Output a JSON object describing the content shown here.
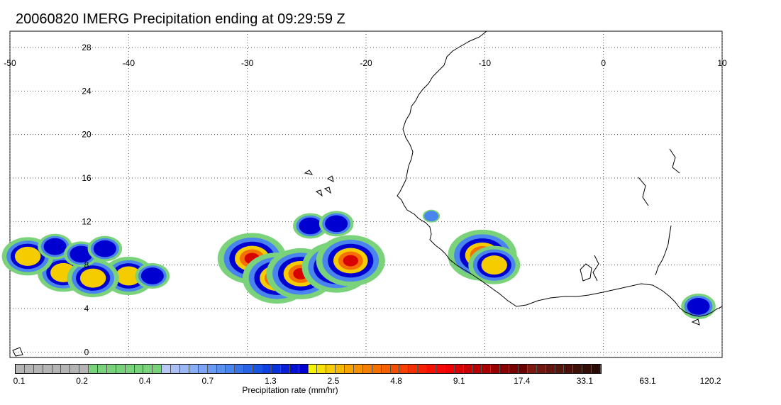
{
  "title": "20060820 IMERG Precipitation ending at 09:29:59 Z",
  "map": {
    "lon_ticks": [
      "-50",
      "-40",
      "-30",
      "-20",
      "-10",
      "0",
      "10"
    ],
    "lat_ticks": [
      "28",
      "24",
      "20",
      "16",
      "12",
      "8",
      "4",
      "0"
    ],
    "grid": "dotted",
    "lon_range": [
      -50,
      10
    ],
    "lat_range": [
      -0.5,
      29.5
    ]
  },
  "colorbar": {
    "title": "Precipitation rate (mm/hr)",
    "labels": [
      "0.1",
      "0.2",
      "0.4",
      "0.7",
      "1.3",
      "2.5",
      "4.8",
      "9.1",
      "17.4",
      "33.1",
      "63.1",
      "120.2"
    ],
    "colors": [
      "#b4b4b4",
      "#b4b4b4",
      "#b4b4b4",
      "#b4b4b4",
      "#b4b4b4",
      "#b4b4b4",
      "#b4b4b4",
      "#b4b4b4",
      "#7ad37a",
      "#7ad37a",
      "#7ad37a",
      "#7ad37a",
      "#7ad37a",
      "#7ad37a",
      "#7ad37a",
      "#7ad37a",
      "#b9c8f5",
      "#aac0f5",
      "#9bb8f5",
      "#8aaef5",
      "#7aa4f4",
      "#6a9af2",
      "#5a90f0",
      "#4a84ee",
      "#3a74ea",
      "#2a64e6",
      "#1a54e2",
      "#1040e0",
      "#0a30dc",
      "#0a20d8",
      "#0010d4",
      "#0000d0",
      "#f5f500",
      "#f5e000",
      "#f5cc00",
      "#f5b800",
      "#f5a400",
      "#f59000",
      "#f58000",
      "#f57000",
      "#f56000",
      "#f55000",
      "#f54000",
      "#f53000",
      "#f52000",
      "#f51000",
      "#f50800",
      "#f00000",
      "#d80000",
      "#c80000",
      "#b80000",
      "#a80000",
      "#980000",
      "#880000",
      "#780000",
      "#6a0000",
      "#7a1a10",
      "#6e1810",
      "#62160e",
      "#56140c",
      "#4a120a",
      "#3e1008",
      "#340e06",
      "#2a0c04"
    ]
  },
  "precip_cells": [
    {
      "lon": -29.6,
      "lat": 8.6,
      "intensity": 3
    },
    {
      "lon": -27.5,
      "lat": 6.8,
      "intensity": 3
    },
    {
      "lon": -25.5,
      "lat": 7.2,
      "intensity": 3
    },
    {
      "lon": -22.5,
      "lat": 7.8,
      "intensity": 3
    },
    {
      "lon": -21.3,
      "lat": 8.4,
      "intensity": 3
    },
    {
      "lon": -40.0,
      "lat": 7.0,
      "intensity": 2
    },
    {
      "lon": -45.5,
      "lat": 7.3,
      "intensity": 2
    },
    {
      "lon": -48.5,
      "lat": 8.8,
      "intensity": 2
    },
    {
      "lon": -43.0,
      "lat": 6.8,
      "intensity": 2
    },
    {
      "lon": -10.2,
      "lat": 8.9,
      "intensity": 3
    },
    {
      "lon": -9.2,
      "lat": 8.0,
      "intensity": 2
    },
    {
      "lon": -24.7,
      "lat": 11.6,
      "intensity": 1
    },
    {
      "lon": -22.5,
      "lat": 11.8,
      "intensity": 1
    },
    {
      "lon": -38.0,
      "lat": 7.0,
      "intensity": 1
    },
    {
      "lon": -14.5,
      "lat": 12.5,
      "intensity": 0
    },
    {
      "lon": 8.0,
      "lat": 4.2,
      "intensity": 1
    },
    {
      "lon": -46.2,
      "lat": 9.7,
      "intensity": 1
    },
    {
      "lon": -44.0,
      "lat": 9.0,
      "intensity": 1
    },
    {
      "lon": -42.0,
      "lat": 9.5,
      "intensity": 1
    }
  ]
}
